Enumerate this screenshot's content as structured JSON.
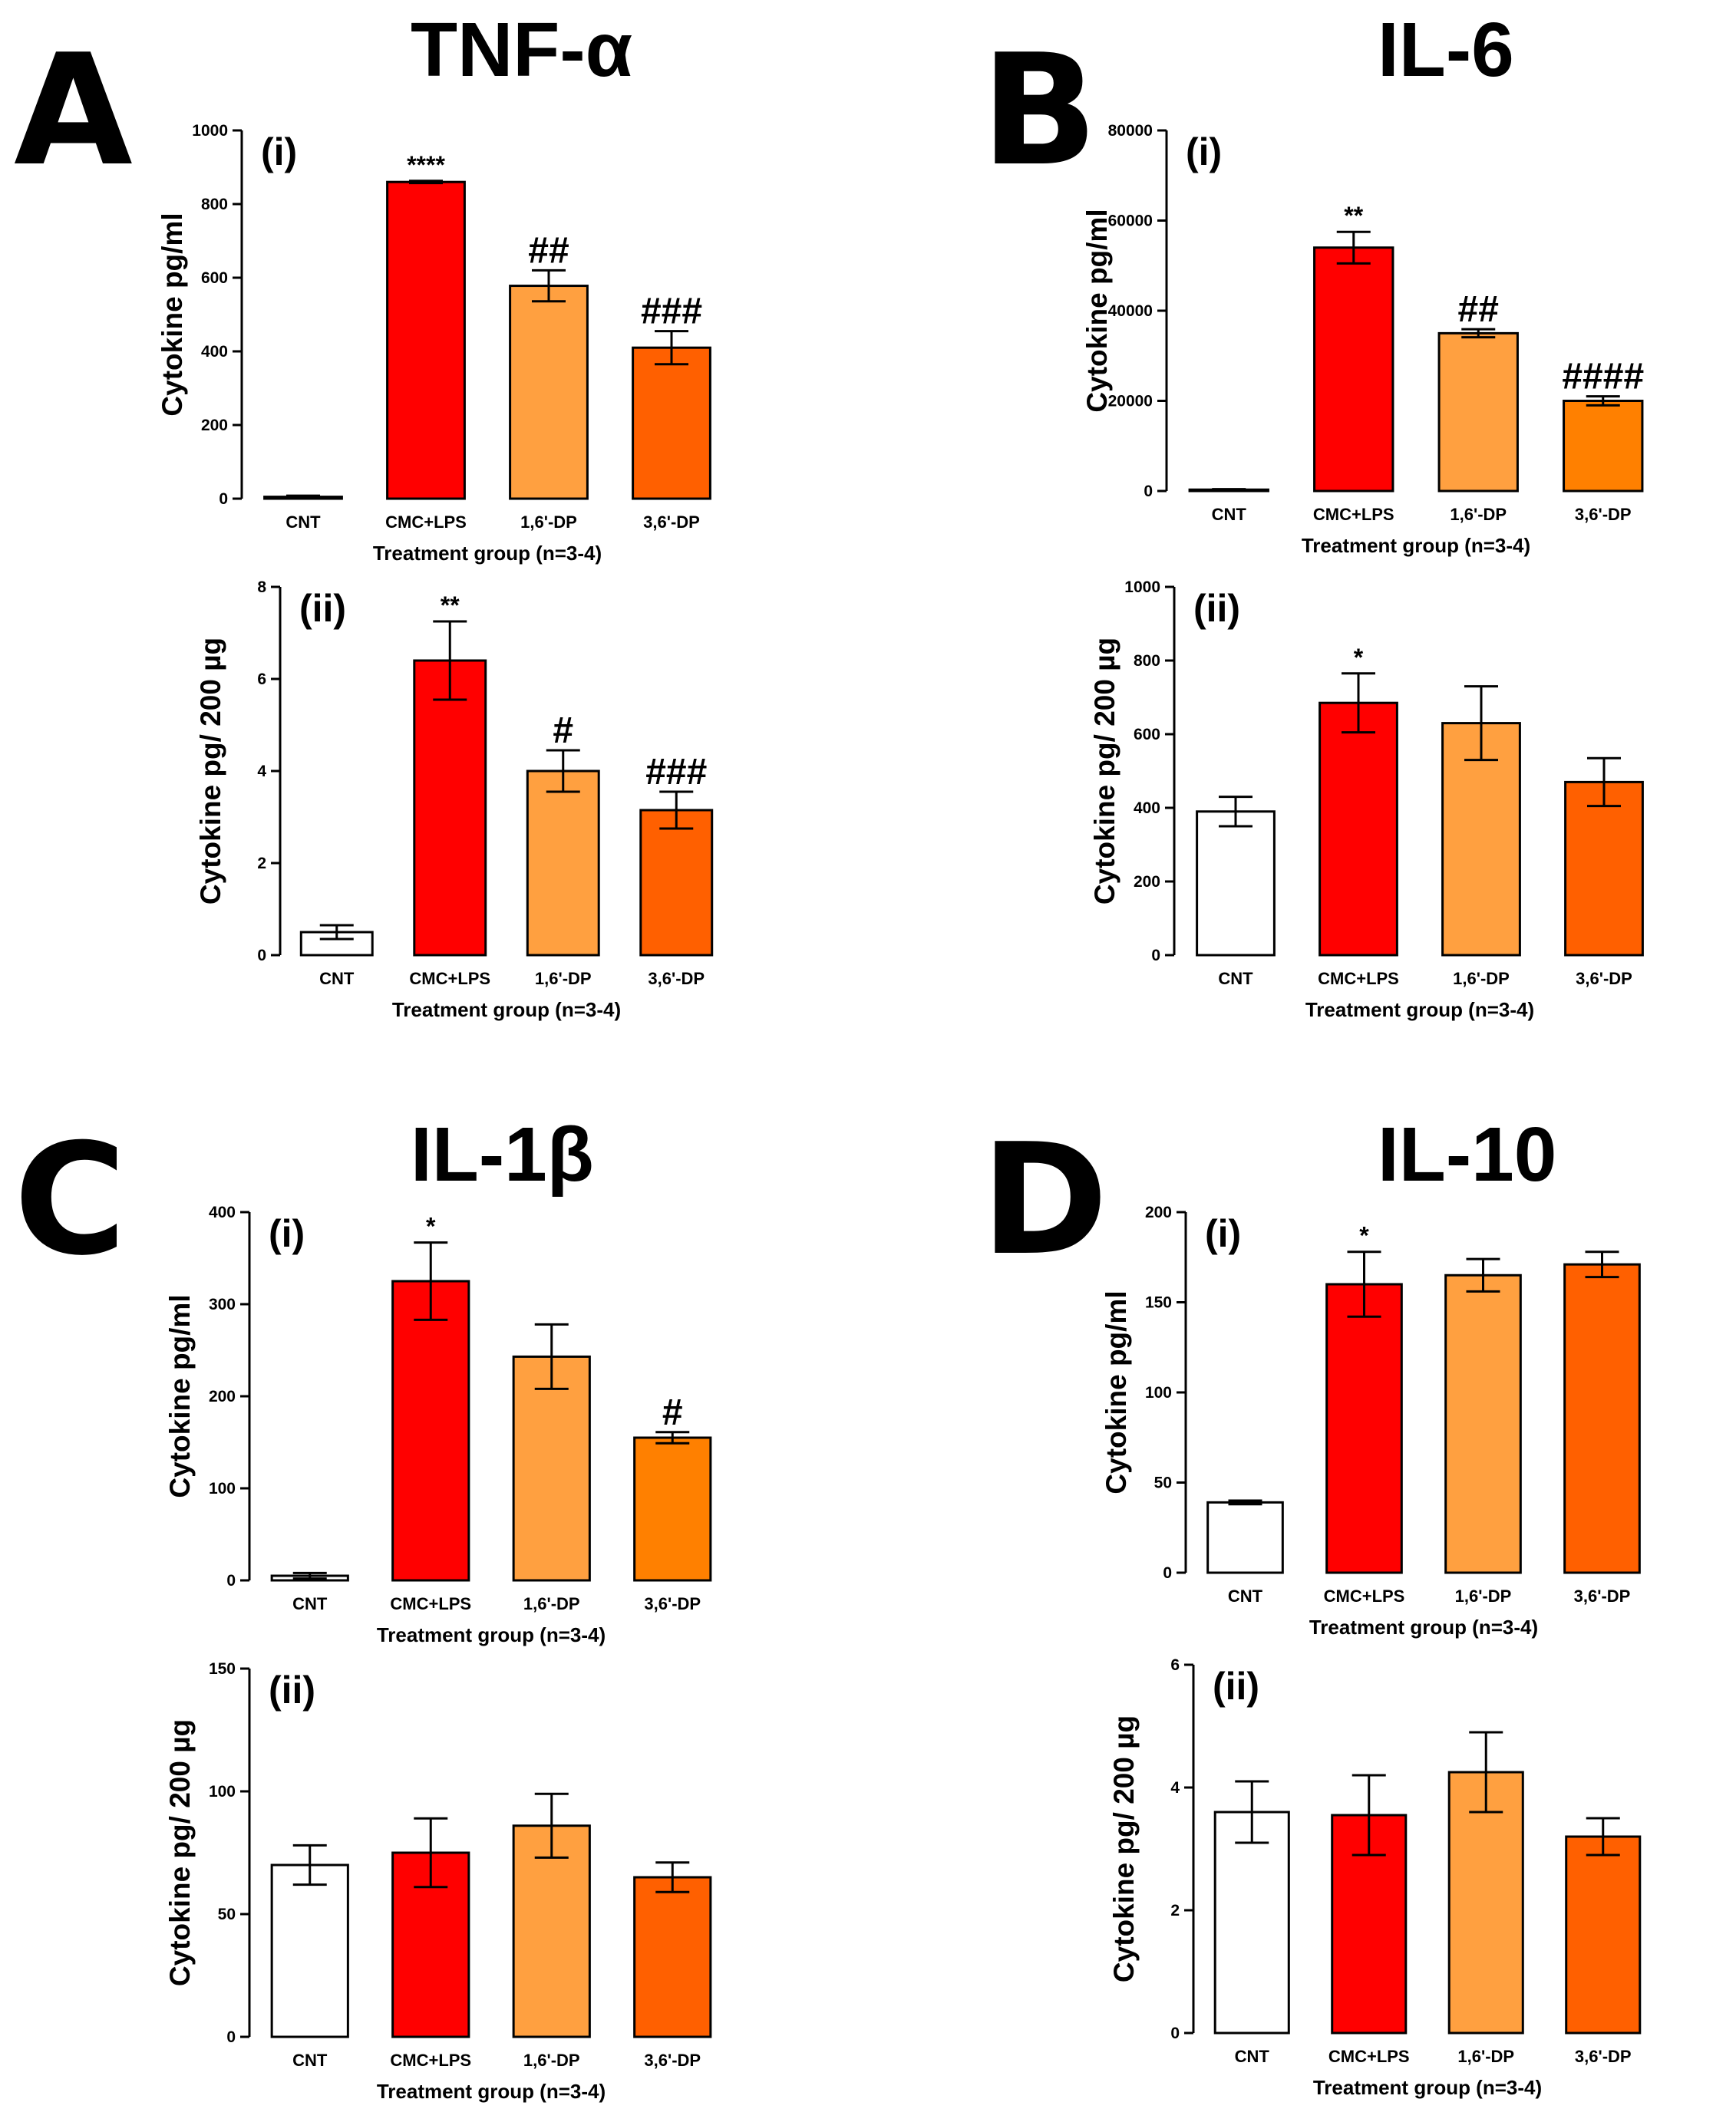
{
  "panels": [
    {
      "letter": "A",
      "title": "TNF-α"
    },
    {
      "letter": "B",
      "title": "IL-6"
    },
    {
      "letter": "C",
      "title": "IL-1β"
    },
    {
      "letter": "D",
      "title": "IL-10"
    }
  ],
  "chart_data": [
    {
      "type": "bar",
      "panel": "A",
      "sub": "(i)",
      "title": "TNF-α",
      "categories": [
        "CNT",
        "CMC+LPS",
        "1,6'-DP",
        "3,6'-DP"
      ],
      "values": [
        5,
        860,
        578,
        410
      ],
      "errors": [
        3,
        3,
        42,
        45
      ],
      "annotations": [
        "",
        "****",
        "##",
        "###"
      ],
      "colors": [
        "#ffffff",
        "#ff0000",
        "#ffa040",
        "#ff6000"
      ],
      "ylim": [
        0,
        1000
      ],
      "ticks": [
        0,
        200,
        400,
        600,
        800,
        1000
      ],
      "ylabel": "Cytokine pg/ml",
      "xlabel": "Treatment group (n=3-4)"
    },
    {
      "type": "bar",
      "panel": "A",
      "sub": "(ii)",
      "categories": [
        "CNT",
        "CMC+LPS",
        "1,6'-DP",
        "3,6'-DP"
      ],
      "values": [
        0.5,
        6.4,
        4.0,
        3.15
      ],
      "errors": [
        0.15,
        0.85,
        0.45,
        0.4
      ],
      "annotations": [
        "",
        "**",
        "#",
        "###"
      ],
      "colors": [
        "#ffffff",
        "#ff0000",
        "#ffa040",
        "#ff6000"
      ],
      "ylim": [
        0,
        8
      ],
      "ticks": [
        0,
        2,
        4,
        6,
        8
      ],
      "ylabel": "Cytokine pg/ 200 µg",
      "xlabel": "Treatment group (n=3-4)"
    },
    {
      "type": "bar",
      "panel": "B",
      "sub": "(i)",
      "title": "IL-6",
      "categories": [
        "CNT",
        "CMC+LPS",
        "1,6'-DP",
        "3,6'-DP"
      ],
      "values": [
        300,
        54000,
        35000,
        20000
      ],
      "errors": [
        100,
        3500,
        900,
        1000
      ],
      "annotations": [
        "",
        "**",
        "##",
        "####"
      ],
      "colors": [
        "#ffffff",
        "#ff0000",
        "#ffa040",
        "#ff8000"
      ],
      "ylim": [
        0,
        80000
      ],
      "ticks": [
        0,
        20000,
        40000,
        60000,
        80000
      ],
      "ylabel": "Cytokine pg/ml",
      "xlabel": "Treatment group (n=3-4)"
    },
    {
      "type": "bar",
      "panel": "B",
      "sub": "(ii)",
      "categories": [
        "CNT",
        "CMC+LPS",
        "1,6'-DP",
        "3,6'-DP"
      ],
      "values": [
        390,
        685,
        630,
        470
      ],
      "errors": [
        40,
        80,
        100,
        65
      ],
      "annotations": [
        "",
        "*",
        "",
        ""
      ],
      "colors": [
        "#ffffff",
        "#ff0000",
        "#ffa040",
        "#ff6000"
      ],
      "ylim": [
        0,
        1000
      ],
      "ticks": [
        0,
        200,
        400,
        600,
        800,
        1000
      ],
      "ylabel": "Cytokine pg/ 200 µg",
      "xlabel": "Treatment group (n=3-4)"
    },
    {
      "type": "bar",
      "panel": "C",
      "sub": "(i)",
      "title": "IL-1β",
      "categories": [
        "CNT",
        "CMC+LPS",
        "1,6'-DP",
        "3,6'-DP"
      ],
      "values": [
        5,
        325,
        243,
        155
      ],
      "errors": [
        3,
        42,
        35,
        6
      ],
      "annotations": [
        "",
        "*",
        "",
        "#"
      ],
      "colors": [
        "#ffffff",
        "#ff0000",
        "#ffa040",
        "#ff8000"
      ],
      "ylim": [
        0,
        400
      ],
      "ticks": [
        0,
        100,
        200,
        300,
        400
      ],
      "ylabel": "Cytokine pg/ml",
      "xlabel": "Treatment group (n=3-4)"
    },
    {
      "type": "bar",
      "panel": "C",
      "sub": "(ii)",
      "categories": [
        "CNT",
        "CMC+LPS",
        "1,6'-DP",
        "3,6'-DP"
      ],
      "values": [
        70,
        75,
        86,
        65
      ],
      "errors": [
        8,
        14,
        13,
        6
      ],
      "annotations": [
        "",
        "",
        "",
        ""
      ],
      "colors": [
        "#ffffff",
        "#ff0000",
        "#ffa040",
        "#ff6000"
      ],
      "ylim": [
        0,
        150
      ],
      "ticks": [
        0,
        50,
        100,
        150
      ],
      "ylabel": "Cytokine pg/ 200 µg",
      "xlabel": "Treatment group (n=3-4)"
    },
    {
      "type": "bar",
      "panel": "D",
      "sub": "(i)",
      "title": "IL-10",
      "categories": [
        "CNT",
        "CMC+LPS",
        "1,6'-DP",
        "3,6'-DP"
      ],
      "values": [
        39,
        160,
        165,
        171
      ],
      "errors": [
        1,
        18,
        9,
        7
      ],
      "annotations": [
        "",
        "*",
        "",
        ""
      ],
      "colors": [
        "#ffffff",
        "#ff0000",
        "#ffa040",
        "#ff6000"
      ],
      "ylim": [
        0,
        200
      ],
      "ticks": [
        0,
        50,
        100,
        150,
        200
      ],
      "ylabel": "Cytokine pg/ml",
      "xlabel": "Treatment group (n=3-4)"
    },
    {
      "type": "bar",
      "panel": "D",
      "sub": "(ii)",
      "categories": [
        "CNT",
        "CMC+LPS",
        "1,6'-DP",
        "3,6'-DP"
      ],
      "values": [
        3.6,
        3.55,
        4.25,
        3.2
      ],
      "errors": [
        0.5,
        0.65,
        0.65,
        0.3
      ],
      "annotations": [
        "",
        "",
        "",
        ""
      ],
      "colors": [
        "#ffffff",
        "#ff0000",
        "#ffa040",
        "#ff6000"
      ],
      "ylim": [
        0,
        6
      ],
      "ticks": [
        0,
        2,
        4,
        6
      ],
      "ylabel": "Cytokine pg/ 200 µg",
      "xlabel": "Treatment group (n=3-4)"
    }
  ]
}
